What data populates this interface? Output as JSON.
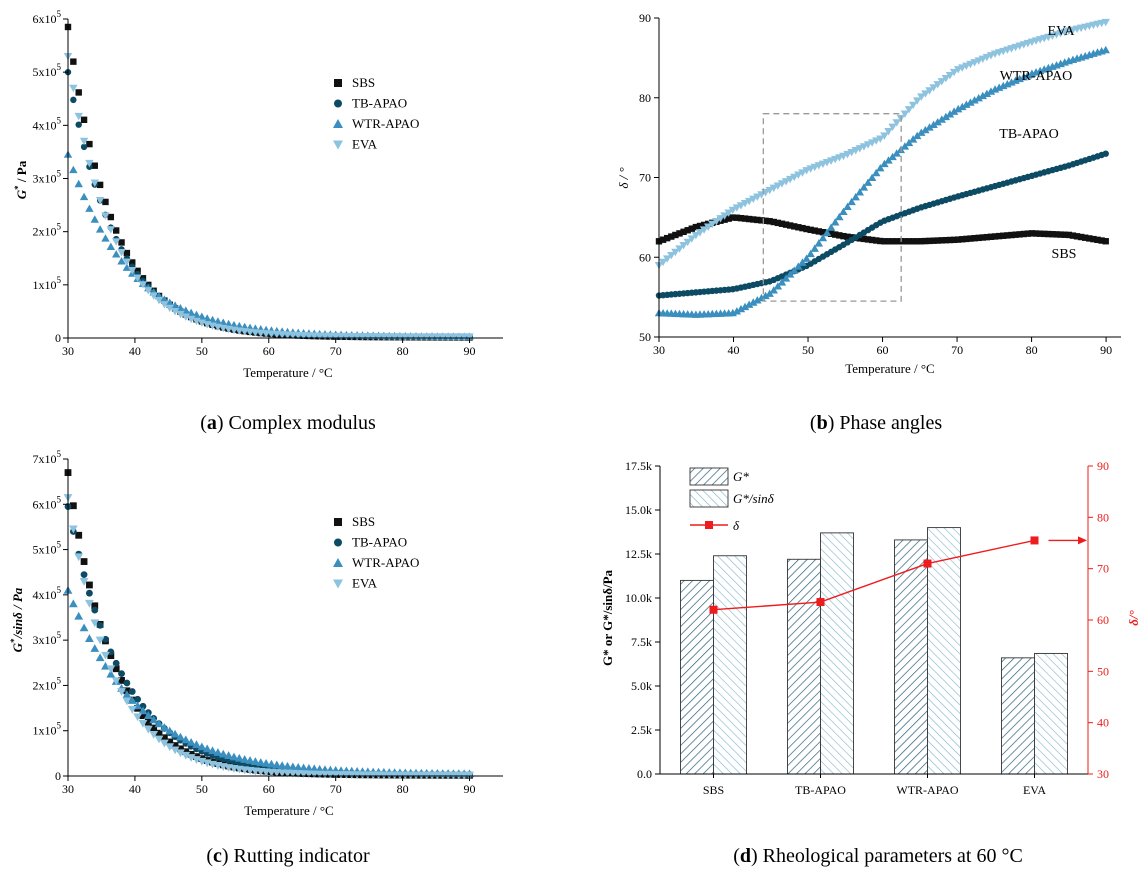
{
  "colors": {
    "SBS": "#111111",
    "TB-APAO": "#0d4a64",
    "WTR-APAO": "#3b8fbf",
    "EVA": "#8ec3df",
    "delta": "#ee1c1c",
    "box": "#999999"
  },
  "chart_data": [
    {
      "id": "a",
      "type": "scatter",
      "caption_letter": "a",
      "caption_rest": ") Complex modulus",
      "caption_open": "(",
      "xlabel": "Temperature / °C",
      "ylabel_main": "G",
      "ylabel_sup": "*",
      "ylabel_rest": " / Pa",
      "xlim": [
        30,
        95
      ],
      "ylim": [
        0,
        600000
      ],
      "xticks": [
        "30",
        "40",
        "50",
        "60",
        "70",
        "80",
        "90"
      ],
      "yticks": [
        "0",
        "1x10",
        "2x10",
        "3x10",
        "4x10",
        "5x10",
        "6x10"
      ],
      "ytick_exp": "5",
      "legend": [
        "SBS",
        "TB-APAO",
        "WTR-APAO",
        "EVA"
      ],
      "series": [
        {
          "name": "SBS",
          "marker": "square",
          "y30": 585000,
          "k": 0.148,
          "tail": 1000
        },
        {
          "name": "TB-APAO",
          "marker": "circle",
          "y30": 500000,
          "k": 0.138,
          "tail": 1500
        },
        {
          "name": "WTR-APAO",
          "marker": "up",
          "y30": 345000,
          "k": 0.11,
          "tail": 2000
        },
        {
          "name": "EVA",
          "marker": "down",
          "y30": 530000,
          "k": 0.15,
          "tail": 2500
        }
      ]
    },
    {
      "id": "b",
      "type": "scatter",
      "caption_letter": "b",
      "caption_rest": ") Phase angles",
      "caption_open": "(",
      "xlabel": "Temperature / °C",
      "ylabel": "δ / °",
      "xlim": [
        30,
        92
      ],
      "ylim": [
        50,
        90
      ],
      "xticks": [
        "30",
        "40",
        "50",
        "60",
        "70",
        "80",
        "90"
      ],
      "yticks": [
        "50",
        "60",
        "70",
        "80",
        "90"
      ],
      "annotations": [
        "EVA",
        "WTR-APAO",
        "TB-APAO",
        "SBS"
      ],
      "highlight_box": {
        "x": [
          44,
          62.5
        ],
        "y": [
          54.5,
          78
        ]
      },
      "series": [
        {
          "name": "SBS",
          "marker": "square",
          "x": [
            30,
            35,
            40,
            45,
            50,
            55,
            60,
            65,
            70,
            75,
            80,
            85,
            90
          ],
          "y": [
            62,
            63.8,
            65,
            64.5,
            63.5,
            62.6,
            62,
            62,
            62.2,
            62.6,
            63,
            62.8,
            62
          ]
        },
        {
          "name": "TB-APAO",
          "marker": "circle",
          "x": [
            30,
            35,
            40,
            45,
            50,
            55,
            60,
            65,
            70,
            75,
            80,
            85,
            90
          ],
          "y": [
            55.2,
            55.6,
            56,
            57,
            59,
            61.7,
            64.5,
            66.2,
            67.6,
            68.9,
            70.2,
            71.5,
            73
          ]
        },
        {
          "name": "WTR-APAO",
          "marker": "up",
          "x": [
            30,
            35,
            40,
            45,
            50,
            55,
            60,
            65,
            70,
            75,
            80,
            85,
            90
          ],
          "y": [
            53,
            52.8,
            53,
            55.5,
            60,
            66,
            71.5,
            75.5,
            78.5,
            81,
            83,
            84.6,
            86
          ]
        },
        {
          "name": "EVA",
          "marker": "down",
          "x": [
            30,
            35,
            40,
            45,
            50,
            55,
            60,
            65,
            70,
            75,
            80,
            85,
            90
          ],
          "y": [
            59,
            62.8,
            66,
            68.5,
            71,
            72.8,
            75,
            80,
            83.5,
            85.5,
            87,
            88.4,
            89.5
          ]
        }
      ]
    },
    {
      "id": "c",
      "type": "scatter",
      "caption_letter": "c",
      "caption_rest": ") Rutting indicator",
      "caption_open": "(",
      "xlabel": "Temperature / °C",
      "ylabel_main": "G",
      "ylabel_sup": "*",
      "ylabel_rest": "/sinδ / Pa",
      "xlim": [
        30,
        95
      ],
      "ylim": [
        0,
        700000
      ],
      "xticks": [
        "30",
        "40",
        "50",
        "60",
        "70",
        "80",
        "90"
      ],
      "yticks": [
        "0",
        "1x10",
        "2x10",
        "3x10",
        "4x10",
        "5x10",
        "6x10",
        "7x10"
      ],
      "ytick_exp": "5",
      "legend": [
        "SBS",
        "TB-APAO",
        "WTR-APAO",
        "EVA"
      ],
      "series": [
        {
          "name": "SBS",
          "marker": "square",
          "y30": 670000,
          "k": 0.145,
          "tail": 1500
        },
        {
          "name": "TB-APAO",
          "marker": "circle",
          "y30": 595000,
          "k": 0.122,
          "tail": 3000
        },
        {
          "name": "WTR-APAO",
          "marker": "up",
          "y30": 410000,
          "k": 0.095,
          "tail": 3500
        },
        {
          "name": "EVA",
          "marker": "down",
          "y30": 615000,
          "k": 0.15,
          "tail": 2000
        }
      ]
    },
    {
      "id": "d",
      "type": "bar",
      "caption_letter": "d",
      "caption_rest": ") Rheological parameters at 60 °C",
      "caption_open": "(",
      "categories": [
        "SBS",
        "TB-APAO",
        "WTR-APAO",
        "EVA"
      ],
      "series": [
        {
          "name": "G*",
          "values": [
            11000,
            12200,
            13300,
            6600
          ]
        },
        {
          "name": "G*/sinδ",
          "values": [
            12400,
            13700,
            14000,
            6850
          ]
        },
        {
          "name": "δ",
          "axis": "right",
          "values": [
            62,
            63.5,
            71,
            75.5
          ]
        }
      ],
      "ylabel": "G* or G*/sinδ/Pa",
      "ylabel2": "δ/°",
      "ylim": [
        0,
        17500
      ],
      "ylim2": [
        30,
        90
      ],
      "yticks": [
        "0.0",
        "2.5k",
        "5.0k",
        "7.5k",
        "10.0k",
        "12.5k",
        "15.0k",
        "17.5k"
      ],
      "yticks2": [
        "30",
        "40",
        "50",
        "60",
        "70",
        "80",
        "90"
      ]
    }
  ]
}
